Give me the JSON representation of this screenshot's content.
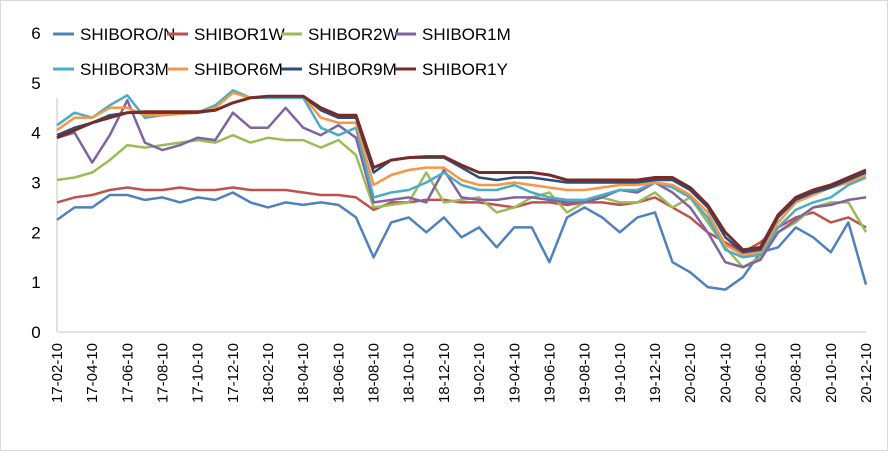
{
  "chart_data": {
    "type": "line",
    "title": "",
    "xlabel": "",
    "ylabel": "",
    "ylim": [
      0,
      6
    ],
    "yticks": [
      "0",
      "1",
      "2",
      "3",
      "4",
      "5",
      "6"
    ],
    "grid": false,
    "legend_position": "top",
    "x_tick_labels": [
      "17-02-10",
      "17-04-10",
      "17-06-10",
      "17-08-10",
      "17-10-10",
      "17-12-10",
      "18-02-10",
      "18-04-10",
      "18-06-10",
      "18-08-10",
      "18-10-10",
      "18-12-10",
      "19-02-10",
      "19-04-10",
      "19-06-10",
      "19-08-10",
      "19-10-10",
      "19-12-10",
      "20-02-10",
      "20-04-10",
      "20-06-10",
      "20-08-10",
      "20-10-10",
      "20-12-10"
    ],
    "x": [
      "17-02-10",
      "17-03-10",
      "17-04-10",
      "17-05-10",
      "17-06-10",
      "17-07-10",
      "17-08-10",
      "17-09-10",
      "17-10-10",
      "17-11-10",
      "17-12-10",
      "18-01-10",
      "18-02-10",
      "18-03-10",
      "18-04-10",
      "18-05-10",
      "18-06-10",
      "18-07-10",
      "18-08-10",
      "18-09-10",
      "18-10-10",
      "18-11-10",
      "18-12-10",
      "19-01-10",
      "19-02-10",
      "19-03-10",
      "19-04-10",
      "19-05-10",
      "19-06-10",
      "19-07-10",
      "19-08-10",
      "19-09-10",
      "19-10-10",
      "19-11-10",
      "19-12-10",
      "20-01-10",
      "20-02-10",
      "20-03-10",
      "20-04-10",
      "20-05-10",
      "20-06-10",
      "20-07-10",
      "20-08-10",
      "20-09-10",
      "20-10-10",
      "20-11-10",
      "20-12-10"
    ],
    "series": [
      {
        "name": "SHIBORO/N",
        "color": "#4f81bd",
        "values": [
          2.25,
          2.5,
          2.5,
          2.75,
          2.75,
          2.65,
          2.7,
          2.6,
          2.7,
          2.65,
          2.8,
          2.6,
          2.5,
          2.6,
          2.55,
          2.6,
          2.55,
          2.3,
          1.5,
          2.2,
          2.3,
          2.0,
          2.3,
          1.9,
          2.1,
          1.7,
          2.1,
          2.1,
          1.4,
          2.3,
          2.5,
          2.3,
          2.0,
          2.3,
          2.4,
          1.4,
          1.2,
          0.9,
          0.85,
          1.1,
          1.6,
          1.7,
          2.1,
          1.9,
          1.6,
          2.2,
          0.95
        ]
      },
      {
        "name": "SHIBOR1W",
        "color": "#c0504d",
        "values": [
          2.6,
          2.7,
          2.75,
          2.85,
          2.9,
          2.85,
          2.85,
          2.9,
          2.85,
          2.85,
          2.9,
          2.85,
          2.85,
          2.85,
          2.8,
          2.75,
          2.75,
          2.7,
          2.45,
          2.6,
          2.6,
          2.65,
          2.65,
          2.6,
          2.6,
          2.55,
          2.5,
          2.6,
          2.6,
          2.55,
          2.6,
          2.6,
          2.55,
          2.6,
          2.7,
          2.5,
          2.3,
          2.0,
          1.8,
          1.6,
          1.8,
          2.1,
          2.3,
          2.4,
          2.2,
          2.3,
          2.1
        ]
      },
      {
        "name": "SHIBOR2W",
        "color": "#9bbb59",
        "values": [
          3.05,
          3.1,
          3.2,
          3.45,
          3.75,
          3.7,
          3.75,
          3.8,
          3.85,
          3.8,
          3.95,
          3.8,
          3.9,
          3.85,
          3.85,
          3.7,
          3.85,
          3.55,
          2.5,
          2.55,
          2.6,
          3.2,
          2.6,
          2.65,
          2.7,
          2.4,
          2.5,
          2.7,
          2.8,
          2.4,
          2.6,
          2.7,
          2.6,
          2.6,
          2.8,
          2.5,
          2.7,
          2.2,
          1.7,
          1.3,
          1.5,
          2.0,
          2.2,
          2.5,
          2.6,
          2.6,
          2.0
        ]
      },
      {
        "name": "SHIBOR1M",
        "color": "#8064a2",
        "values": [
          3.9,
          4.0,
          3.4,
          3.95,
          4.65,
          3.8,
          3.65,
          3.75,
          3.9,
          3.85,
          4.4,
          4.1,
          4.1,
          4.5,
          4.1,
          3.95,
          4.15,
          3.9,
          2.6,
          2.65,
          2.7,
          2.6,
          3.25,
          2.7,
          2.65,
          2.65,
          2.7,
          2.7,
          2.65,
          2.6,
          2.6,
          2.7,
          2.85,
          2.8,
          3.0,
          2.8,
          2.5,
          2.0,
          1.4,
          1.3,
          1.45,
          2.0,
          2.25,
          2.5,
          2.55,
          2.65,
          2.7
        ]
      },
      {
        "name": "SHIBOR3M",
        "color": "#4bacc6",
        "values": [
          4.15,
          4.4,
          4.3,
          4.55,
          4.75,
          4.3,
          4.35,
          4.38,
          4.4,
          4.55,
          4.85,
          4.7,
          4.7,
          4.7,
          4.7,
          4.1,
          3.95,
          4.1,
          2.7,
          2.8,
          2.85,
          3.0,
          3.2,
          2.95,
          2.85,
          2.85,
          2.95,
          2.8,
          2.7,
          2.65,
          2.65,
          2.75,
          2.85,
          2.85,
          3.0,
          2.9,
          2.7,
          2.3,
          1.65,
          1.5,
          1.55,
          2.1,
          2.45,
          2.6,
          2.7,
          2.95,
          3.1
        ]
      },
      {
        "name": "SHIBOR6M",
        "color": "#f79646",
        "values": [
          4.05,
          4.3,
          4.3,
          4.5,
          4.5,
          4.35,
          4.35,
          4.38,
          4.4,
          4.5,
          4.8,
          4.7,
          4.73,
          4.73,
          4.73,
          4.3,
          4.2,
          4.2,
          2.95,
          3.15,
          3.25,
          3.3,
          3.3,
          3.05,
          2.95,
          2.95,
          3.0,
          2.95,
          2.9,
          2.85,
          2.85,
          2.9,
          2.95,
          2.95,
          3.0,
          2.95,
          2.75,
          2.4,
          1.75,
          1.55,
          1.6,
          2.2,
          2.6,
          2.75,
          2.9,
          3.0,
          3.15
        ]
      },
      {
        "name": "SHIBOR9M",
        "color": "#2c4d75",
        "values": [
          3.95,
          4.1,
          4.2,
          4.35,
          4.4,
          4.4,
          4.4,
          4.4,
          4.4,
          4.45,
          4.6,
          4.7,
          4.73,
          4.73,
          4.73,
          4.45,
          4.3,
          4.3,
          3.2,
          3.45,
          3.5,
          3.5,
          3.5,
          3.3,
          3.1,
          3.05,
          3.1,
          3.1,
          3.05,
          3.0,
          3.0,
          3.0,
          3.0,
          3.0,
          3.05,
          3.05,
          2.85,
          2.5,
          1.9,
          1.6,
          1.65,
          2.3,
          2.65,
          2.8,
          2.9,
          3.05,
          3.2
        ]
      },
      {
        "name": "SHIBOR1Y",
        "color": "#772c2a",
        "values": [
          3.9,
          4.05,
          4.2,
          4.3,
          4.4,
          4.42,
          4.42,
          4.42,
          4.42,
          4.45,
          4.6,
          4.7,
          4.73,
          4.73,
          4.73,
          4.5,
          4.35,
          4.35,
          3.3,
          3.45,
          3.5,
          3.52,
          3.52,
          3.35,
          3.2,
          3.2,
          3.2,
          3.2,
          3.15,
          3.05,
          3.05,
          3.05,
          3.05,
          3.05,
          3.1,
          3.1,
          2.9,
          2.55,
          2.0,
          1.65,
          1.7,
          2.35,
          2.7,
          2.85,
          2.95,
          3.1,
          3.25
        ]
      }
    ]
  }
}
